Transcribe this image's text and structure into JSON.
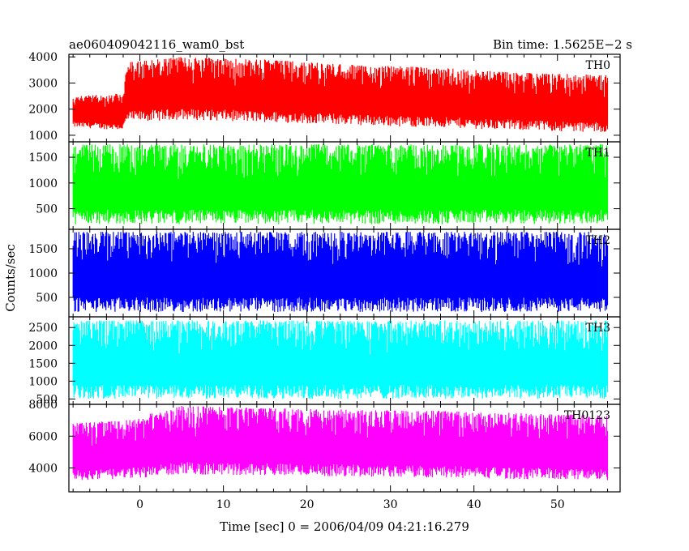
{
  "header": {
    "title": "ae060409042116_wam0_bst",
    "bin_time": "Bin time: 1.5625E−2 s"
  },
  "chart_data": {
    "type": "line",
    "title": "ae060409042116_wam0_bst",
    "subtitle": "Bin time: 1.5625E−2 s",
    "xlabel": "Time [sec] 0 = 2006/04/09 04:21:16.279",
    "ylabel": "Counts/sec",
    "xlim": [
      -8.5,
      57.5
    ],
    "x_range_data": [
      -8,
      56
    ],
    "x_ticks": [
      0,
      10,
      20,
      30,
      40,
      50
    ],
    "x_tick_labels": [
      "0",
      "10",
      "20",
      "30",
      "40",
      "50"
    ],
    "grid": false,
    "panels": [
      {
        "name": "TH0",
        "color": "#ff0000",
        "ylim": [
          750,
          4100
        ],
        "y_ticks": [
          1000,
          2000,
          3000,
          4000
        ],
        "y_tick_labels": [
          "1000",
          "2000",
          "3000",
          "4000"
        ],
        "series_points": [
          {
            "t": -8,
            "low": 1300,
            "high": 2500
          },
          {
            "t": -2,
            "low": 1200,
            "high": 2600
          },
          {
            "t": -1.5,
            "low": 1500,
            "high": 3800
          },
          {
            "t": 5,
            "low": 1600,
            "high": 4000
          },
          {
            "t": 15,
            "low": 1500,
            "high": 3900
          },
          {
            "t": 25,
            "low": 1400,
            "high": 3700
          },
          {
            "t": 35,
            "low": 1300,
            "high": 3600
          },
          {
            "t": 45,
            "low": 1200,
            "high": 3400
          },
          {
            "t": 56,
            "low": 1100,
            "high": 3300
          }
        ]
      },
      {
        "name": "TH1",
        "color": "#00ff00",
        "ylim": [
          100,
          1800
        ],
        "y_ticks": [
          500,
          1000,
          1500
        ],
        "y_tick_labels": [
          "500",
          "1000",
          "1500"
        ],
        "series_points": [
          {
            "t": -8,
            "low": 200,
            "high": 1750
          },
          {
            "t": 56,
            "low": 200,
            "high": 1750
          }
        ]
      },
      {
        "name": "TH2",
        "color": "#0000ff",
        "ylim": [
          100,
          1900
        ],
        "y_ticks": [
          500,
          1000,
          1500
        ],
        "y_tick_labels": [
          "500",
          "1000",
          "1500"
        ],
        "series_points": [
          {
            "t": -8,
            "low": 200,
            "high": 1850
          },
          {
            "t": 56,
            "low": 200,
            "high": 1850
          }
        ]
      },
      {
        "name": "TH3",
        "color": "#00ffff",
        "ylim": [
          350,
          2800
        ],
        "y_ticks": [
          500,
          1000,
          1500,
          2000,
          2500
        ],
        "y_tick_labels": [
          "500",
          "1000",
          "1500",
          "2000",
          "2500"
        ],
        "series_points": [
          {
            "t": -8,
            "low": 500,
            "high": 2700
          },
          {
            "t": 56,
            "low": 500,
            "high": 2700
          }
        ]
      },
      {
        "name": "TH0123",
        "color": "#ff00ff",
        "ylim": [
          2500,
          8000
        ],
        "y_ticks": [
          4000,
          6000,
          8000
        ],
        "y_tick_labels": [
          "4000",
          "6000",
          "8000"
        ],
        "series_points": [
          {
            "t": -8,
            "low": 3200,
            "high": 6800
          },
          {
            "t": -2,
            "low": 3300,
            "high": 7000
          },
          {
            "t": 5,
            "low": 3600,
            "high": 7900
          },
          {
            "t": 20,
            "low": 3500,
            "high": 7700
          },
          {
            "t": 35,
            "low": 3400,
            "high": 7600
          },
          {
            "t": 56,
            "low": 3200,
            "high": 7300
          }
        ]
      }
    ]
  }
}
